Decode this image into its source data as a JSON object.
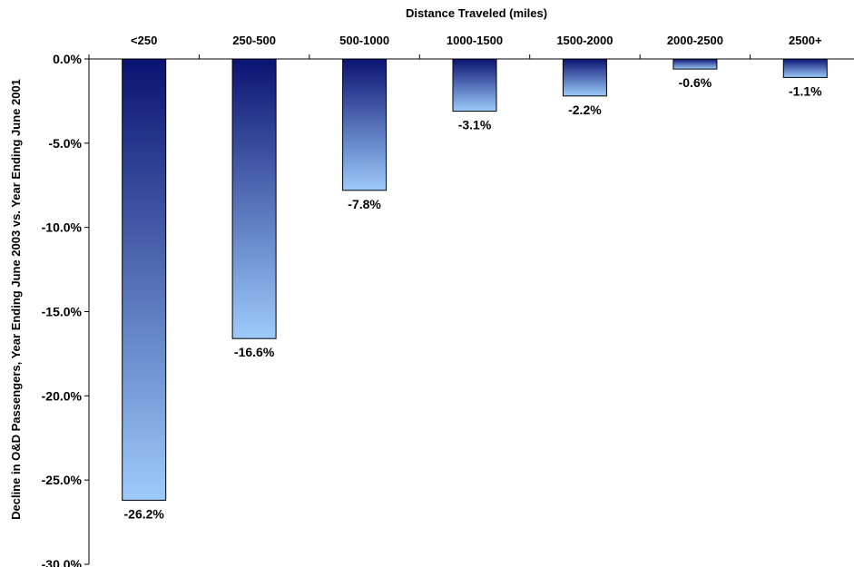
{
  "chart_data": {
    "type": "bar",
    "xlabel": "Distance Traveled (miles)",
    "ylabel": "Decline in O&D Passengers, Year Ending June 2003  vs. Year  Ending June 2001",
    "categories": [
      "<250",
      "250-500",
      "500-1000",
      "1000-1500",
      "1500-2000",
      "2000-2500",
      "2500+"
    ],
    "values": [
      -26.2,
      -16.6,
      -7.8,
      -3.1,
      -2.2,
      -0.6,
      -1.1
    ],
    "data_labels": [
      "-26.2%",
      "-16.6%",
      "-7.8%",
      "-3.1%",
      "-2.2%",
      "-0.6%",
      "-1.1%"
    ],
    "ylim": [
      -30,
      0
    ],
    "yticks": [
      0,
      -5,
      -10,
      -15,
      -20,
      -25,
      -30
    ],
    "ytick_labels": [
      "0.0%",
      "-5.0%",
      "-10.0%",
      "-15.0%",
      "-20.0%",
      "-25.0%",
      "-30.0%"
    ],
    "x_axis_position": "top",
    "grid": false,
    "legend": "none",
    "colors": {
      "bar_top": "#0b1372",
      "bar_bottom": "#9ccbfb",
      "axis": "#000000"
    }
  }
}
